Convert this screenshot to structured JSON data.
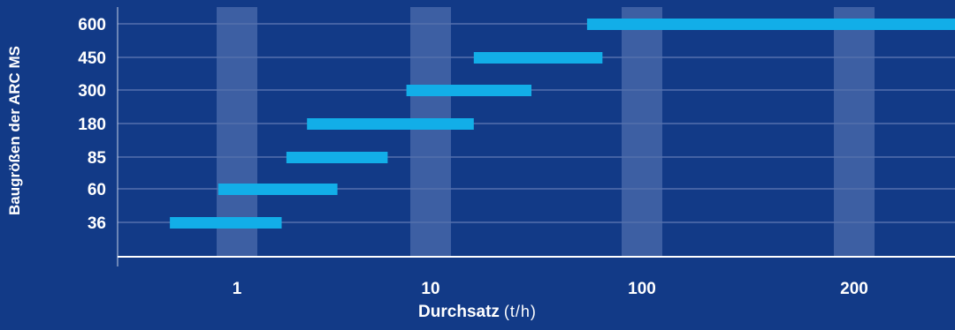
{
  "chart_data": {
    "type": "bar",
    "orientation": "horizontal-range",
    "ylabel": "Baugrößen der ARC MS",
    "xlabel": "Durchsatz",
    "xunit": "(t/h)",
    "x_scale": "log",
    "x_ticks": [
      "1",
      "10",
      "100",
      "200"
    ],
    "categories": [
      "600",
      "450",
      "300",
      "180",
      "85",
      "60",
      "36"
    ],
    "ranges": [
      [
        55,
        340
      ],
      [
        16,
        65
      ],
      [
        7.5,
        30
      ],
      [
        2.3,
        16
      ],
      [
        1.8,
        6
      ],
      [
        0.8,
        3.3
      ],
      [
        0.45,
        1.7
      ]
    ],
    "grid": true,
    "colors": {
      "background": "#123a87",
      "bar": "#12aee8",
      "gridline": "#5570ad",
      "band": "#3d5fa3",
      "axis": "#ffffff",
      "text": "#ffffff"
    }
  }
}
